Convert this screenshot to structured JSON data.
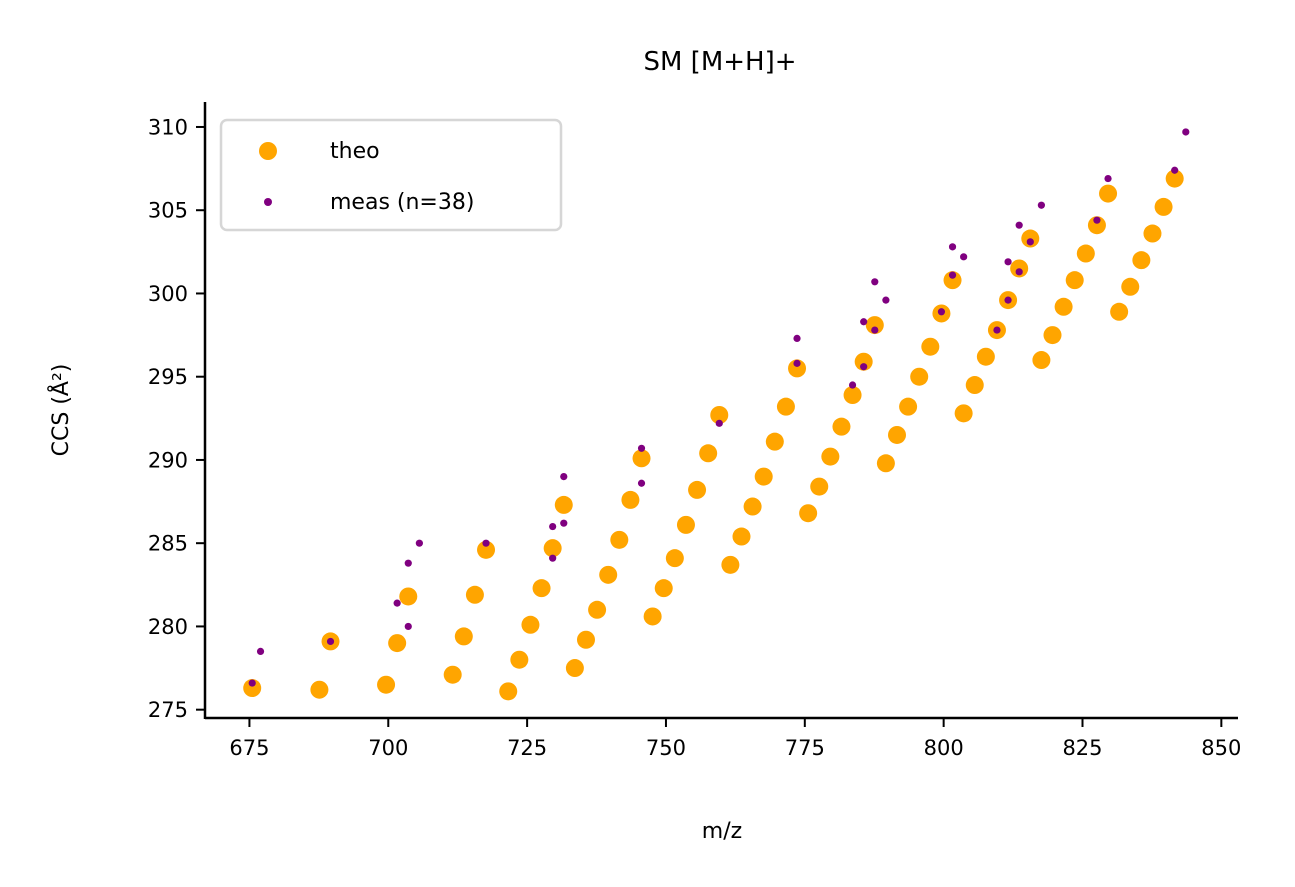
{
  "chart_data": {
    "type": "scatter",
    "title": "SM [M+H]+",
    "xlabel": "m/z",
    "ylabel": "CCS (Å²)",
    "xlim": [
      667,
      853
    ],
    "ylim": [
      274.5,
      311.5
    ],
    "xticks": [
      675,
      700,
      725,
      750,
      775,
      800,
      825,
      850
    ],
    "yticks": [
      275,
      280,
      285,
      290,
      295,
      300,
      305,
      310
    ],
    "legend_position": "upper-left",
    "grid": false,
    "series": [
      {
        "name": "theo",
        "color": "#ffa500",
        "points": [
          [
            675.5,
            276.3
          ],
          [
            687.6,
            276.2
          ],
          [
            689.6,
            279.1
          ],
          [
            699.6,
            276.5
          ],
          [
            701.6,
            279.0
          ],
          [
            703.6,
            281.8
          ],
          [
            711.6,
            277.1
          ],
          [
            713.6,
            279.4
          ],
          [
            715.6,
            281.9
          ],
          [
            717.6,
            284.6
          ],
          [
            721.6,
            276.1
          ],
          [
            723.6,
            278.0
          ],
          [
            725.6,
            280.1
          ],
          [
            727.6,
            282.3
          ],
          [
            729.6,
            284.7
          ],
          [
            731.6,
            287.3
          ],
          [
            733.6,
            277.5
          ],
          [
            735.6,
            279.2
          ],
          [
            737.6,
            281.0
          ],
          [
            739.6,
            283.1
          ],
          [
            741.6,
            285.2
          ],
          [
            743.6,
            287.6
          ],
          [
            745.6,
            290.1
          ],
          [
            747.6,
            280.6
          ],
          [
            749.6,
            282.3
          ],
          [
            751.6,
            284.1
          ],
          [
            753.6,
            286.1
          ],
          [
            755.6,
            288.2
          ],
          [
            757.6,
            290.4
          ],
          [
            759.6,
            292.7
          ],
          [
            761.6,
            283.7
          ],
          [
            763.6,
            285.4
          ],
          [
            765.6,
            287.2
          ],
          [
            767.6,
            289.0
          ],
          [
            769.6,
            291.1
          ],
          [
            771.6,
            293.2
          ],
          [
            773.6,
            295.5
          ],
          [
            775.6,
            286.8
          ],
          [
            777.6,
            288.4
          ],
          [
            779.6,
            290.2
          ],
          [
            781.6,
            292.0
          ],
          [
            783.6,
            293.9
          ],
          [
            785.6,
            295.9
          ],
          [
            787.6,
            298.1
          ],
          [
            789.6,
            289.8
          ],
          [
            791.6,
            291.5
          ],
          [
            793.6,
            293.2
          ],
          [
            795.6,
            295.0
          ],
          [
            797.6,
            296.8
          ],
          [
            799.6,
            298.8
          ],
          [
            801.6,
            300.8
          ],
          [
            803.6,
            292.8
          ],
          [
            805.6,
            294.5
          ],
          [
            807.6,
            296.2
          ],
          [
            809.6,
            297.8
          ],
          [
            811.6,
            299.6
          ],
          [
            813.6,
            301.5
          ],
          [
            815.6,
            303.3
          ],
          [
            817.6,
            296.0
          ],
          [
            819.6,
            297.5
          ],
          [
            821.6,
            299.2
          ],
          [
            823.6,
            300.8
          ],
          [
            825.6,
            302.4
          ],
          [
            827.6,
            304.1
          ],
          [
            829.6,
            306.0
          ],
          [
            831.6,
            298.9
          ],
          [
            833.6,
            300.4
          ],
          [
            835.6,
            302.0
          ],
          [
            837.6,
            303.6
          ],
          [
            839.6,
            305.2
          ],
          [
            841.6,
            306.9
          ]
        ]
      },
      {
        "name": "meas (n=38)",
        "color": "#800080",
        "points": [
          [
            675.5,
            276.6
          ],
          [
            677.0,
            278.5
          ],
          [
            689.6,
            279.1
          ],
          [
            701.6,
            281.4
          ],
          [
            703.6,
            280.0
          ],
          [
            703.6,
            283.8
          ],
          [
            705.6,
            285.0
          ],
          [
            717.6,
            285.0
          ],
          [
            729.6,
            284.1
          ],
          [
            729.6,
            286.0
          ],
          [
            731.6,
            286.2
          ],
          [
            731.6,
            289.0
          ],
          [
            745.6,
            288.6
          ],
          [
            745.6,
            290.7
          ],
          [
            759.6,
            292.2
          ],
          [
            773.6,
            295.8
          ],
          [
            773.6,
            297.3
          ],
          [
            783.6,
            294.5
          ],
          [
            785.6,
            295.6
          ],
          [
            785.6,
            298.3
          ],
          [
            787.6,
            297.8
          ],
          [
            787.6,
            300.7
          ],
          [
            789.6,
            299.6
          ],
          [
            799.6,
            298.9
          ],
          [
            801.6,
            301.1
          ],
          [
            801.6,
            302.8
          ],
          [
            803.6,
            302.2
          ],
          [
            809.6,
            297.8
          ],
          [
            811.6,
            299.6
          ],
          [
            811.6,
            301.9
          ],
          [
            813.6,
            301.3
          ],
          [
            813.6,
            304.1
          ],
          [
            815.6,
            303.1
          ],
          [
            817.6,
            305.3
          ],
          [
            827.6,
            304.4
          ],
          [
            829.6,
            306.9
          ],
          [
            841.6,
            307.4
          ],
          [
            843.6,
            309.7
          ]
        ]
      }
    ]
  }
}
